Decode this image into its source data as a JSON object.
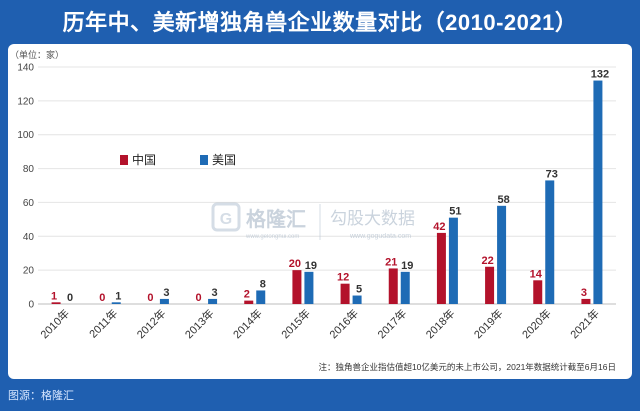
{
  "header": {
    "title": "历年中、美新增独角兽企业数量对比（2010-2021）"
  },
  "footer": {
    "source": "图源：格隆汇"
  },
  "watermark": {
    "brand": "格隆汇",
    "brand_sub": "www.gelonghui.com",
    "site": "勾股大数据",
    "site_url": "www.gogudata.com"
  },
  "colors": {
    "china": "#b3122b",
    "usa": "#1e6bb5",
    "grid": "#e4e4e4",
    "panel": "#ffffff"
  },
  "chart_data": {
    "type": "bar",
    "unit_label": "（单位：家）",
    "categories": [
      "2010年",
      "2011年",
      "2012年",
      "2013年",
      "2014年",
      "2015年",
      "2016年",
      "2017年",
      "2018年",
      "2019年",
      "2020年",
      "2021年"
    ],
    "series": [
      {
        "name": "中国",
        "values": [
          1,
          0,
          0,
          0,
          2,
          20,
          12,
          21,
          42,
          22,
          14,
          3
        ]
      },
      {
        "name": "美国",
        "values": [
          0,
          1,
          3,
          3,
          8,
          19,
          5,
          19,
          51,
          58,
          73,
          132
        ]
      }
    ],
    "ylim": [
      0,
      140
    ],
    "yticks": [
      0,
      20,
      40,
      60,
      80,
      100,
      120,
      140
    ],
    "grid": true,
    "legend": "top-left",
    "note": "注：独角兽企业指估值超10亿美元的未上市公司，2021年数据统计截至6月16日"
  }
}
